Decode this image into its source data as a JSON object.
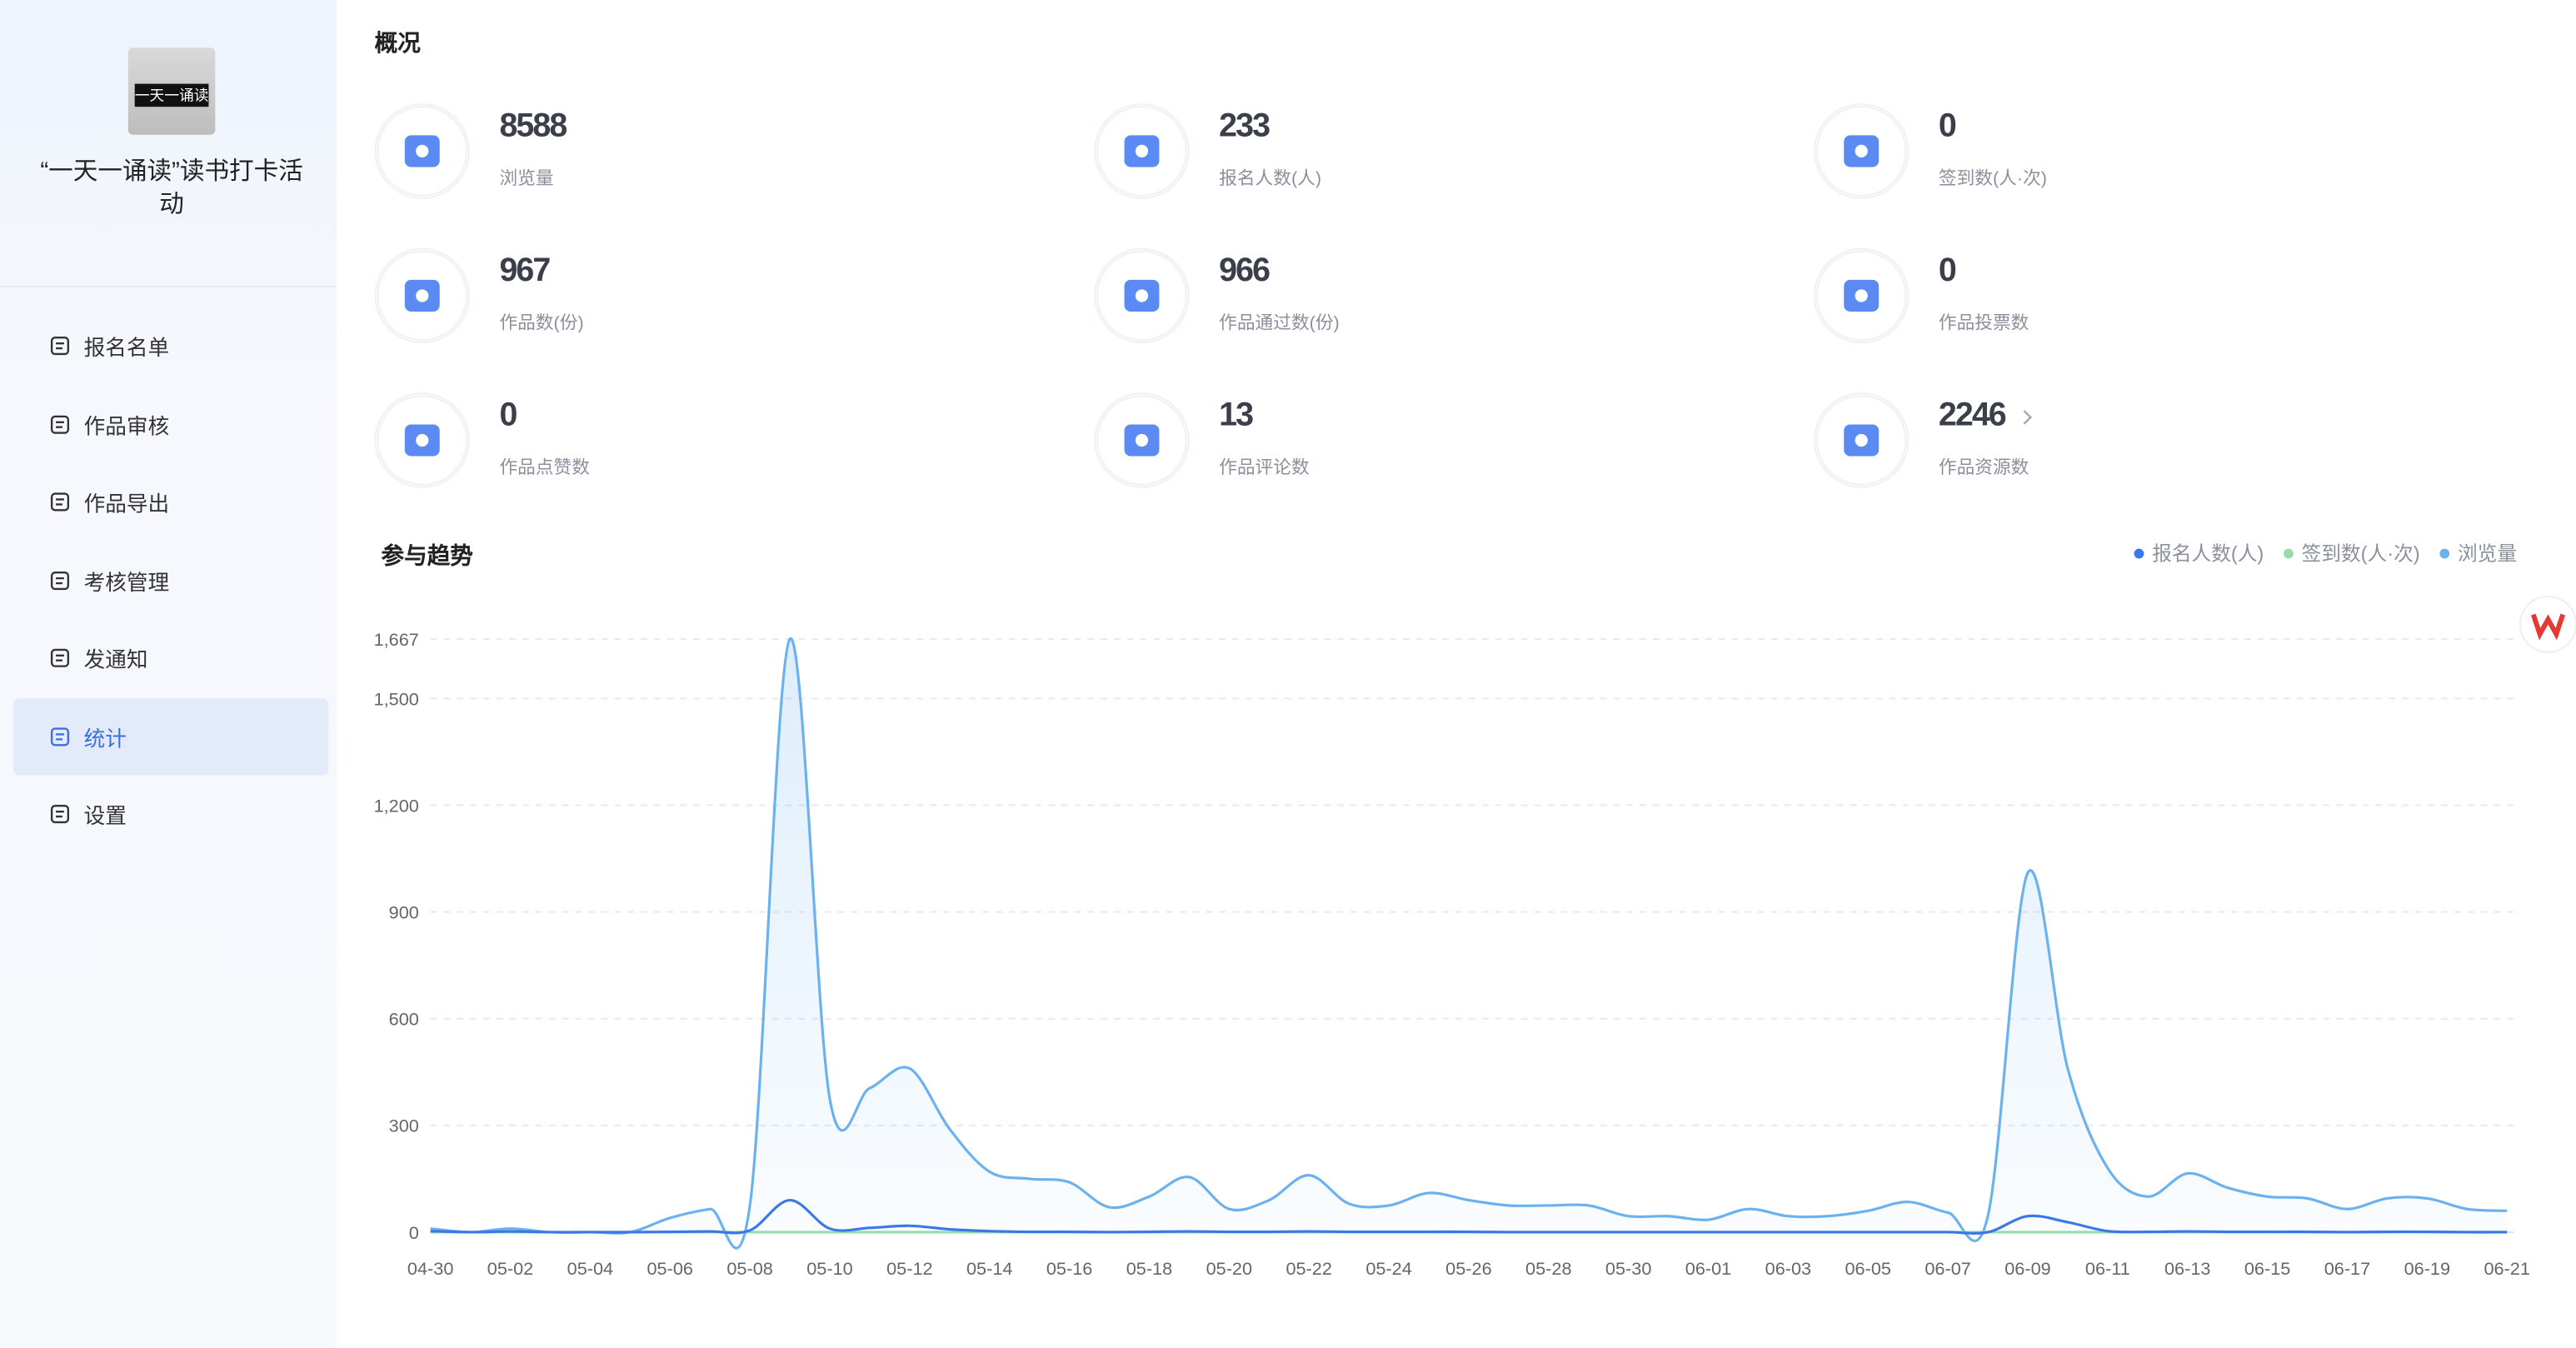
{
  "sidebar": {
    "logo_text": "一天一诵读",
    "title": "“一天一诵读”读书打卡活动",
    "menu": [
      "报名名单",
      "作品审核",
      "作品导出",
      "考核管理",
      "发通知",
      "统计",
      "设置"
    ],
    "active": 5
  },
  "overview": {
    "title": "概况",
    "stats": [
      {
        "value": 8588,
        "label": "浏览量"
      },
      {
        "value": 233,
        "label": "报名人数(人)"
      },
      {
        "value": 0,
        "label": "签到数(人·次)"
      },
      {
        "value": 967,
        "label": "作品数(份)"
      },
      {
        "value": 966,
        "label": "作品通过数(份)"
      },
      {
        "value": 0,
        "label": "作品投票数"
      },
      {
        "value": 0,
        "label": "作品点赞数"
      },
      {
        "value": 13,
        "label": "作品评论数"
      },
      {
        "value": 2246,
        "label": "作品资源数",
        "link": true
      }
    ]
  },
  "chart_data": {
    "type": "line",
    "title": "参与趋势",
    "categories": [
      "04-30",
      null,
      "05-02",
      null,
      "05-04",
      null,
      "05-06",
      null,
      "05-08",
      null,
      "05-10",
      null,
      "05-12",
      null,
      "05-14",
      null,
      "05-16",
      null,
      "05-18",
      null,
      "05-20",
      null,
      "05-22",
      null,
      "05-24",
      null,
      "05-26",
      null,
      "05-28",
      null,
      "05-30",
      null,
      "06-01",
      null,
      "06-03",
      null,
      "06-05",
      null,
      "06-07",
      null,
      "06-09",
      null,
      "06-11",
      null,
      "06-13",
      null,
      "06-15",
      null,
      "06-17",
      null,
      "06-19",
      null,
      "06-21"
    ],
    "series": [
      {
        "name": "报名人数(人)",
        "color": "#3b78e7",
        "values": [
          3,
          0,
          2,
          0,
          0,
          0,
          1,
          2,
          5,
          90,
          10,
          12,
          18,
          8,
          3,
          1,
          1,
          0,
          1,
          2,
          1,
          1,
          2,
          1,
          1,
          1,
          1,
          0,
          0,
          0,
          0,
          0,
          0,
          0,
          0,
          0,
          0,
          0,
          0,
          0,
          45,
          28,
          3,
          1,
          2,
          1,
          1,
          1,
          0,
          1,
          1,
          0,
          0
        ]
      },
      {
        "name": "签到数(人·次)",
        "color": "#95dcaa",
        "values": [
          0,
          0,
          0,
          0,
          0,
          0,
          0,
          0,
          0,
          0,
          0,
          0,
          0,
          0,
          0,
          0,
          0,
          0,
          0,
          0,
          0,
          0,
          0,
          0,
          0,
          0,
          0,
          0,
          0,
          0,
          0,
          0,
          0,
          0,
          0,
          0,
          0,
          0,
          0,
          0,
          0,
          0,
          0,
          0,
          0,
          0,
          0,
          0,
          0,
          0,
          0,
          0,
          0
        ]
      },
      {
        "name": "浏览量",
        "color": "#69b1ef",
        "area": true,
        "values": [
          10,
          0,
          10,
          0,
          0,
          0,
          40,
          65,
          75,
          1667,
          375,
          405,
          460,
          290,
          170,
          150,
          140,
          70,
          100,
          155,
          65,
          90,
          160,
          80,
          75,
          110,
          90,
          75,
          75,
          75,
          45,
          45,
          35,
          65,
          45,
          45,
          60,
          85,
          55,
          45,
          1010,
          460,
          180,
          100,
          165,
          125,
          100,
          95,
          65,
          95,
          95,
          65,
          60
        ]
      }
    ],
    "ylim": [
      0,
      1667
    ],
    "yticks": [
      0,
      300,
      600,
      900,
      {
        "value": 1200,
        "label": "1,200"
      },
      {
        "value": 1500,
        "label": "1,500"
      },
      {
        "value": 1667,
        "label": "1,667"
      }
    ],
    "grid": true,
    "legend": "top-right"
  }
}
